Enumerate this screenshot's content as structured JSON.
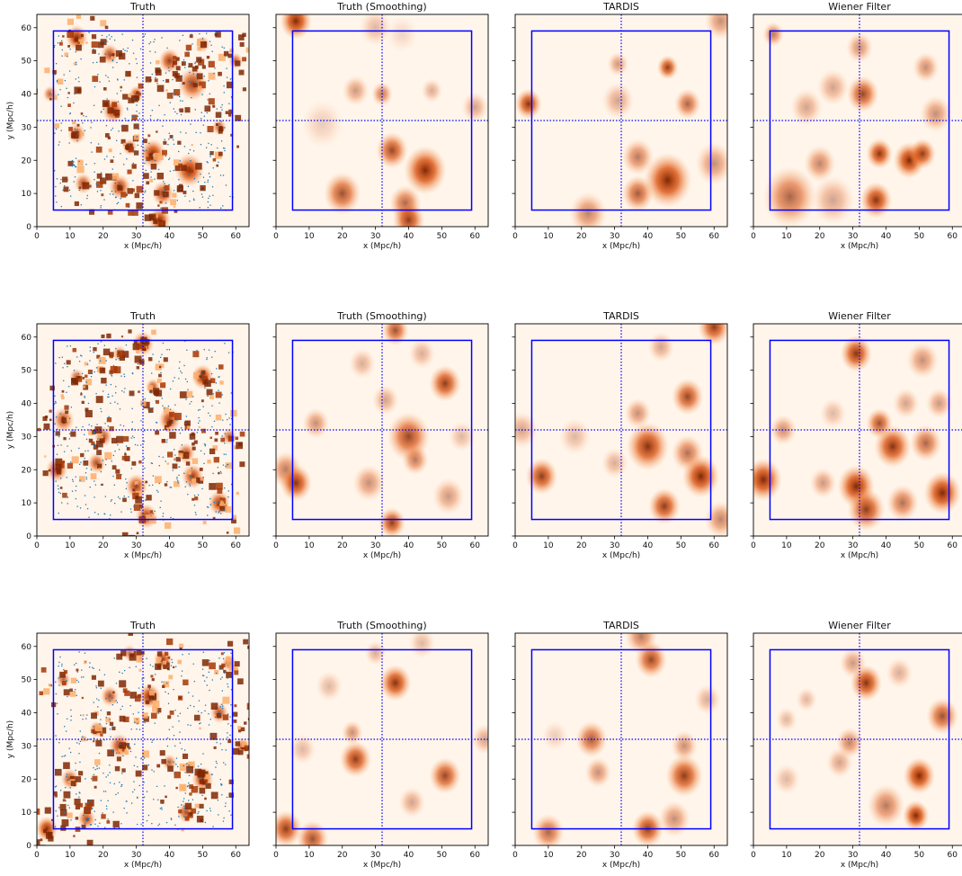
{
  "figure": {
    "rows": 3,
    "columns": 4,
    "panel_titles": [
      "Truth",
      "Truth (Smoothing)",
      "TARDIS",
      "Wiener Filter"
    ]
  },
  "chart_data": [
    {
      "type": "heatmap",
      "title": "Truth",
      "xlabel": "x (Mpc/h)",
      "ylabel": "y (Mpc/h)",
      "xlim": [
        0,
        64
      ],
      "ylim": [
        0,
        64
      ],
      "xticks": [
        0,
        10,
        20,
        30,
        40,
        50,
        60
      ],
      "yticks": [
        0,
        10,
        20,
        30,
        40,
        50,
        60
      ],
      "colormap": "Oranges",
      "colors": {
        "low": "#fff5eb",
        "high": "#7f2704"
      },
      "overlay": {
        "box": {
          "x": [
            5,
            59
          ],
          "y": [
            5,
            59
          ],
          "color": "#0000ff"
        },
        "crosshair": {
          "x": 32,
          "y": 32,
          "style": "dotted",
          "color": "#0000ff"
        },
        "scatter": {
          "color": "#1f77b4"
        }
      }
    },
    {
      "type": "heatmap",
      "title": "Truth (Smoothing)",
      "xlabel": "x (Mpc/h)",
      "xlim": [
        0,
        64
      ],
      "ylim": [
        0,
        64
      ],
      "xticks": [
        0,
        10,
        20,
        30,
        40,
        50,
        60
      ],
      "colormap": "Oranges",
      "overlay": {
        "box": {
          "x": [
            5,
            59
          ],
          "y": [
            5,
            59
          ]
        },
        "crosshair": {
          "x": 32,
          "y": 32,
          "style": "dotted"
        }
      }
    },
    {
      "type": "heatmap",
      "title": "TARDIS",
      "xlabel": "x (Mpc/h)",
      "xlim": [
        0,
        64
      ],
      "ylim": [
        0,
        64
      ],
      "xticks": [
        0,
        10,
        20,
        30,
        40,
        50,
        60
      ],
      "colormap": "Oranges",
      "overlay": {
        "box": {
          "x": [
            5,
            59
          ],
          "y": [
            5,
            59
          ]
        },
        "crosshair": {
          "x": 32,
          "y": 32,
          "style": "dotted"
        }
      }
    },
    {
      "type": "heatmap",
      "title": "Wiener Filter",
      "xlabel": "x (Mpc/h)",
      "xlim": [
        0,
        64
      ],
      "ylim": [
        0,
        64
      ],
      "xticks": [
        0,
        10,
        20,
        30,
        40,
        50,
        60
      ],
      "colormap": "Oranges",
      "overlay": {
        "box": {
          "x": [
            5,
            59
          ],
          "y": [
            5,
            59
          ]
        },
        "crosshair": {
          "x": 32,
          "y": 32,
          "style": "dotted"
        }
      }
    }
  ],
  "blobs": {
    "r0": {
      "truth": [
        [
          12,
          57,
          3,
          1
        ],
        [
          22,
          52,
          2.5,
          0.8
        ],
        [
          40,
          50,
          3,
          0.9
        ],
        [
          47,
          43,
          4,
          0.9
        ],
        [
          30,
          40,
          2,
          0.8
        ],
        [
          23,
          35,
          3,
          0.9
        ],
        [
          12,
          28,
          2.5,
          0.8
        ],
        [
          28,
          24,
          2,
          0.8
        ],
        [
          35,
          22,
          3.5,
          1
        ],
        [
          46,
          17,
          4,
          1
        ],
        [
          25,
          12,
          3,
          0.9
        ],
        [
          14,
          13,
          2.5,
          0.8
        ],
        [
          38,
          10,
          3,
          0.9
        ],
        [
          37,
          2,
          3,
          1
        ],
        [
          55,
          30,
          2,
          0.7
        ],
        [
          4,
          40,
          2,
          0.7
        ],
        [
          60,
          50,
          2,
          0.7
        ],
        [
          50,
          55,
          2,
          0.6
        ]
      ],
      "smooth": [
        [
          6,
          62,
          3,
          1
        ],
        [
          24,
          41,
          2.5,
          0.45
        ],
        [
          32,
          40,
          2,
          0.6
        ],
        [
          47,
          41,
          2,
          0.35
        ],
        [
          60,
          36,
          2.5,
          0.4
        ],
        [
          35,
          23,
          3,
          0.85
        ],
        [
          45,
          17,
          4,
          1
        ],
        [
          20,
          10,
          3.5,
          0.8
        ],
        [
          39,
          7,
          3,
          0.7
        ],
        [
          40,
          2,
          3,
          0.9
        ],
        [
          14,
          31,
          4,
          0.2
        ],
        [
          30,
          60,
          3,
          0.3
        ],
        [
          38,
          58,
          3,
          0.15
        ]
      ],
      "tardis": [
        [
          4,
          37,
          2.5,
          0.95
        ],
        [
          31,
          49,
          2,
          0.45
        ],
        [
          46,
          48,
          2,
          0.9
        ],
        [
          31,
          38,
          3,
          0.4
        ],
        [
          52,
          37,
          2.5,
          0.7
        ],
        [
          37,
          21,
          3,
          0.6
        ],
        [
          46,
          14,
          4.5,
          1
        ],
        [
          37,
          10,
          3,
          0.75
        ],
        [
          22,
          4,
          3.5,
          0.55
        ],
        [
          60,
          19,
          3.5,
          0.5
        ],
        [
          62,
          62,
          3,
          0.5
        ]
      ],
      "wiener": [
        [
          6,
          58,
          2,
          0.6
        ],
        [
          32,
          54,
          2.5,
          0.5
        ],
        [
          33,
          40,
          3,
          0.85
        ],
        [
          24,
          42,
          3,
          0.4
        ],
        [
          20,
          19,
          3,
          0.55
        ],
        [
          11,
          9,
          5,
          0.7
        ],
        [
          24,
          8,
          4,
          0.4
        ],
        [
          38,
          22,
          2.5,
          0.95
        ],
        [
          47,
          20,
          3,
          1
        ],
        [
          51,
          22,
          2.5,
          0.9
        ],
        [
          37,
          8,
          3,
          0.95
        ],
        [
          52,
          48,
          2.5,
          0.5
        ],
        [
          55,
          34,
          3,
          0.5
        ],
        [
          16,
          36,
          3,
          0.4
        ]
      ]
    },
    "r1": {
      "truth": [
        [
          32,
          58,
          3,
          0.9
        ],
        [
          50,
          48,
          3,
          1
        ],
        [
          40,
          35,
          3,
          0.9
        ],
        [
          35,
          45,
          2,
          0.8
        ],
        [
          20,
          30,
          2.5,
          0.8
        ],
        [
          8,
          35,
          3,
          0.8
        ],
        [
          6,
          20,
          3,
          0.9
        ],
        [
          18,
          22,
          2.5,
          0.8
        ],
        [
          30,
          15,
          3,
          0.9
        ],
        [
          45,
          25,
          2.5,
          0.8
        ],
        [
          47,
          18,
          3,
          0.9
        ],
        [
          33,
          6,
          3,
          0.9
        ],
        [
          55,
          10,
          3,
          0.9
        ],
        [
          58,
          30,
          2,
          0.7
        ],
        [
          12,
          48,
          2,
          0.7
        ],
        [
          25,
          55,
          2,
          0.6
        ]
      ],
      "smooth": [
        [
          36,
          62,
          2.5,
          0.8
        ],
        [
          26,
          52,
          2.5,
          0.35
        ],
        [
          44,
          55,
          2.5,
          0.35
        ],
        [
          51,
          46,
          3,
          0.9
        ],
        [
          40,
          30,
          4,
          0.85
        ],
        [
          33,
          41,
          2.5,
          0.4
        ],
        [
          12,
          34,
          2.5,
          0.5
        ],
        [
          3,
          20,
          3,
          0.6
        ],
        [
          6,
          16,
          3,
          0.95
        ],
        [
          28,
          16,
          3,
          0.5
        ],
        [
          35,
          4,
          2.5,
          0.9
        ],
        [
          52,
          12,
          3,
          0.45
        ],
        [
          56,
          30,
          2.5,
          0.3
        ],
        [
          42,
          23,
          2.5,
          0.6
        ]
      ],
      "tardis": [
        [
          60,
          63,
          3,
          0.9
        ],
        [
          44,
          57,
          2.5,
          0.4
        ],
        [
          52,
          42,
          3,
          0.85
        ],
        [
          37,
          37,
          2.5,
          0.5
        ],
        [
          40,
          27,
          4,
          0.95
        ],
        [
          52,
          25,
          3,
          0.65
        ],
        [
          56,
          18,
          3.5,
          1
        ],
        [
          45,
          9,
          3,
          0.9
        ],
        [
          8,
          18,
          3,
          0.9
        ],
        [
          2,
          32,
          3,
          0.4
        ],
        [
          18,
          30,
          3,
          0.3
        ],
        [
          62,
          5,
          3,
          0.55
        ],
        [
          30,
          22,
          2.5,
          0.35
        ]
      ],
      "wiener": [
        [
          31,
          55,
          3,
          0.95
        ],
        [
          51,
          53,
          3,
          0.5
        ],
        [
          46,
          40,
          2.5,
          0.4
        ],
        [
          56,
          40,
          2.5,
          0.45
        ],
        [
          38,
          34,
          2.5,
          0.8
        ],
        [
          42,
          27,
          3.5,
          0.95
        ],
        [
          52,
          28,
          3,
          0.7
        ],
        [
          9,
          32,
          2.5,
          0.5
        ],
        [
          3,
          17,
          3.5,
          1
        ],
        [
          21,
          16,
          2.5,
          0.45
        ],
        [
          31,
          15,
          3.5,
          1
        ],
        [
          34,
          8,
          3.5,
          0.9
        ],
        [
          45,
          10,
          3,
          0.65
        ],
        [
          57,
          13,
          3.5,
          1
        ],
        [
          24,
          37,
          2.5,
          0.3
        ]
      ]
    },
    "r2": {
      "truth": [
        [
          34,
          45,
          3,
          1
        ],
        [
          38,
          56,
          2.5,
          0.9
        ],
        [
          22,
          45,
          2.5,
          0.8
        ],
        [
          18,
          35,
          2,
          0.8
        ],
        [
          25,
          30,
          3,
          0.9
        ],
        [
          10,
          20,
          2.5,
          0.8
        ],
        [
          3,
          5,
          3,
          1
        ],
        [
          15,
          8,
          2.5,
          0.8
        ],
        [
          50,
          20,
          3,
          0.9
        ],
        [
          45,
          10,
          2.5,
          0.8
        ],
        [
          55,
          40,
          2.5,
          0.8
        ],
        [
          40,
          25,
          2,
          0.7
        ],
        [
          8,
          50,
          2,
          0.7
        ],
        [
          28,
          58,
          2,
          0.6
        ],
        [
          58,
          55,
          2,
          0.7
        ],
        [
          62,
          30,
          2,
          0.7
        ]
      ],
      "smooth": [
        [
          36,
          49,
          3,
          0.95
        ],
        [
          30,
          58,
          2,
          0.35
        ],
        [
          23,
          34,
          2,
          0.5
        ],
        [
          24,
          26,
          3,
          0.9
        ],
        [
          51,
          21,
          3,
          0.85
        ],
        [
          41,
          13,
          2.5,
          0.4
        ],
        [
          3,
          5,
          3,
          0.9
        ],
        [
          11,
          2,
          3,
          0.8
        ],
        [
          8,
          29,
          2.5,
          0.3
        ],
        [
          63,
          32,
          2.5,
          0.4
        ],
        [
          44,
          61,
          2.5,
          0.3
        ],
        [
          16,
          48,
          2.5,
          0.3
        ]
      ],
      "tardis": [
        [
          38,
          63,
          3,
          0.6
        ],
        [
          41,
          56,
          3,
          0.85
        ],
        [
          23,
          32,
          3,
          0.75
        ],
        [
          25,
          22,
          2.5,
          0.5
        ],
        [
          51,
          21,
          3.5,
          0.9
        ],
        [
          51,
          30,
          2.5,
          0.5
        ],
        [
          40,
          5,
          3,
          0.9
        ],
        [
          48,
          8,
          3,
          0.5
        ],
        [
          10,
          4,
          3,
          0.7
        ],
        [
          12,
          33,
          2.5,
          0.2
        ],
        [
          58,
          44,
          2.5,
          0.35
        ]
      ],
      "wiener": [
        [
          30,
          55,
          2.5,
          0.45
        ],
        [
          34,
          49,
          3,
          0.95
        ],
        [
          44,
          52,
          2.5,
          0.35
        ],
        [
          57,
          39,
          3,
          0.8
        ],
        [
          50,
          21,
          3,
          1
        ],
        [
          49,
          9,
          2.5,
          1
        ],
        [
          40,
          12,
          3.5,
          0.6
        ],
        [
          29,
          31,
          2.5,
          0.55
        ],
        [
          26,
          25,
          2.5,
          0.4
        ],
        [
          10,
          38,
          2,
          0.3
        ],
        [
          10,
          20,
          2.5,
          0.3
        ],
        [
          16,
          44,
          2,
          0.3
        ]
      ]
    }
  }
}
